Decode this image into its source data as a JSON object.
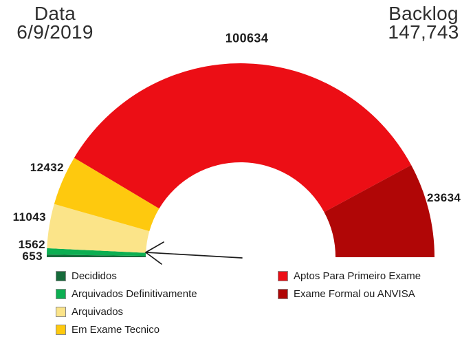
{
  "header": {
    "date_label": "Data",
    "date_value": "6/9/2019",
    "backlog_label": "Backlog",
    "backlog_value": "147,743"
  },
  "chart_data": {
    "type": "pie",
    "variant": "half-donut",
    "title": "Backlog 147,743 (Data 6/9/2019)",
    "start_angle_deg": 180,
    "end_angle_deg": 0,
    "total": 149958,
    "segments": [
      {
        "id": "decididos",
        "label": "Decididos",
        "value": 653,
        "color": "#166B3B"
      },
      {
        "id": "arquivados-definitivamente",
        "label": "Arquivados Definitivamente",
        "value": 1562,
        "color": "#0CAF52"
      },
      {
        "id": "arquivados",
        "label": "Arquivados",
        "value": 11043,
        "color": "#FBE489"
      },
      {
        "id": "em-exame-tecnico",
        "label": "Em Exame Tecnico",
        "value": 12432,
        "color": "#FEC90E"
      },
      {
        "id": "aptos-para-primeiro-exame",
        "label": "Aptos Para Primeiro Exame",
        "value": 100634,
        "color": "#EC0E15"
      },
      {
        "id": "exame-formal-ou-anvisa",
        "label": "Exame Formal ou ANVISA",
        "value": 23634,
        "color": "#B00606"
      }
    ],
    "legend_position": "bottom",
    "annotations": [
      {
        "type": "arrow",
        "target": "smallest slices (Decididos / Arquivados Definitivamente)"
      }
    ]
  }
}
